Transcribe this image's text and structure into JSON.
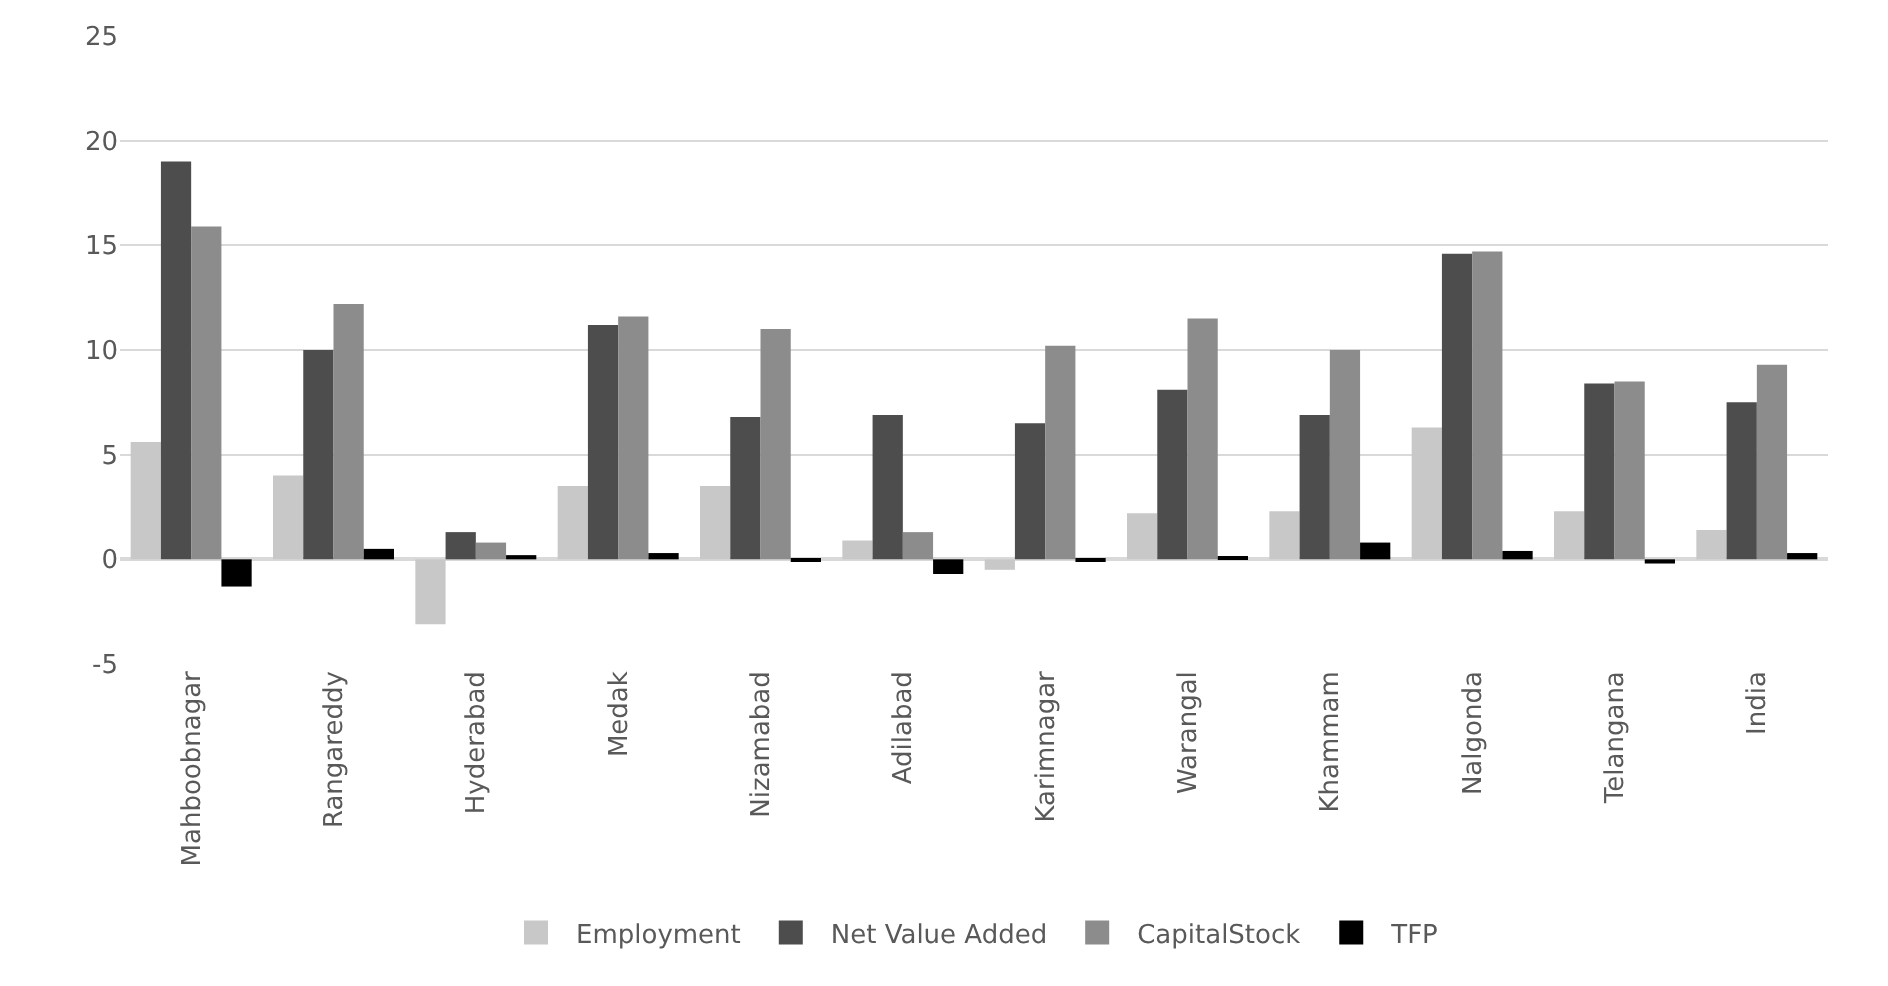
{
  "chart_data": {
    "type": "bar",
    "categories": [
      "Mahboobnagar",
      "Rangareddy",
      "Hyderabad",
      "Medak",
      "Nizamabad",
      "Adilabad",
      "Karimnagar",
      "Warangal",
      "Khammam",
      "Nalgonda",
      "Telangana",
      "India"
    ],
    "series": [
      {
        "name": "Employment",
        "color": "#c8c8c8",
        "values": [
          5.6,
          4.0,
          -3.1,
          3.5,
          3.5,
          0.9,
          -0.5,
          2.2,
          2.3,
          6.3,
          2.3,
          1.4
        ]
      },
      {
        "name": "Net Value Added",
        "color": "#4d4d4d",
        "values": [
          19.0,
          10.0,
          1.3,
          11.2,
          6.8,
          6.9,
          6.5,
          8.1,
          6.9,
          14.6,
          8.4,
          7.5
        ]
      },
      {
        "name": "CapitalStock",
        "color": "#8c8c8c",
        "values": [
          15.9,
          12.2,
          0.8,
          11.6,
          11.0,
          1.3,
          10.2,
          11.5,
          10.0,
          14.7,
          8.5,
          9.3
        ]
      },
      {
        "name": "TFP",
        "color": "#000000",
        "values": [
          -1.3,
          0.5,
          0.2,
          0.3,
          -0.1,
          -0.7,
          -0.1,
          0.1,
          0.8,
          0.4,
          -0.2,
          0.3
        ]
      }
    ],
    "ylim": [
      -5,
      25
    ],
    "yticks": [
      -5,
      0,
      5,
      10,
      15,
      20,
      25
    ],
    "grid": "y",
    "legend": "bottom"
  }
}
